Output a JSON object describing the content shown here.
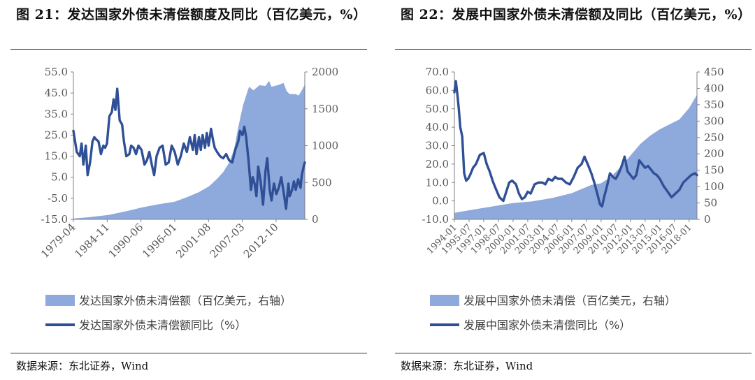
{
  "colors": {
    "area": "#8EA9DB",
    "line": "#2F4F96",
    "axis": "#808080"
  },
  "source_text": "数据来源：东北证券，Wind",
  "chart_data": [
    {
      "type": "area",
      "title": "图  21：发达国家外债未清偿额度及同比（百亿美元，%）",
      "left_axis": {
        "ylim": [
          -15,
          55
        ],
        "ticks": [
          "55.0",
          "45.0",
          "35.0",
          "25.0",
          "15.0",
          "5.0",
          "-5.0",
          "-15.0"
        ]
      },
      "right_axis": {
        "ylim": [
          0,
          2000
        ],
        "ticks": [
          "2000",
          "1500",
          "1000",
          "500",
          "0"
        ]
      },
      "x_ticks": [
        "1979-04",
        "1984-11",
        "1990-06",
        "1996-01",
        "2001-08",
        "2007-03",
        "2012-10"
      ],
      "x_range": [
        1979.25,
        2017.5
      ],
      "grid": false,
      "legend_position": "bottom",
      "series": [
        {
          "name": "发达国家外债未清偿额（百亿美元，右轴）",
          "kind": "area",
          "axis": "right",
          "x": [
            1979.25,
            1982,
            1985,
            1988,
            1990.5,
            1993,
            1996,
            1998,
            2000,
            2001.7,
            2003,
            2004,
            2005,
            2005.8,
            2006.5,
            2007.3,
            2008.0,
            2008.3,
            2009.0,
            2010.0,
            2011.0,
            2011.6,
            2012.0,
            2013.0,
            2014.0,
            2014.5,
            2015.0,
            2016.0,
            2016.5,
            2017.0,
            2017.5
          ],
          "values": [
            10,
            30,
            60,
            110,
            160,
            200,
            240,
            300,
            370,
            450,
            550,
            640,
            770,
            950,
            1250,
            1550,
            1730,
            1800,
            1750,
            1820,
            1810,
            1880,
            1800,
            1820,
            1850,
            1740,
            1700,
            1700,
            1680,
            1750,
            1830
          ]
        },
        {
          "name": "发达国家外债未清偿额同比（%）",
          "kind": "line",
          "axis": "left",
          "x": [
            1979.25,
            1979.8,
            1980.3,
            1980.6,
            1980.9,
            1981.3,
            1981.6,
            1982.0,
            1982.4,
            1982.7,
            1983.0,
            1983.4,
            1983.8,
            1984.2,
            1984.5,
            1984.8,
            1985.2,
            1985.6,
            1985.9,
            1986.2,
            1986.5,
            1986.9,
            1987.3,
            1987.6,
            1988.0,
            1988.5,
            1988.8,
            1989.2,
            1989.6,
            1990.0,
            1990.5,
            1991.0,
            1991.4,
            1991.8,
            1992.2,
            1992.6,
            1993.0,
            1993.5,
            1994.0,
            1994.5,
            1995.0,
            1995.5,
            1996.0,
            1996.5,
            1997.0,
            1997.5,
            1998.0,
            1998.5,
            1999.0,
            1999.3,
            1999.6,
            2000.0,
            2000.3,
            2000.6,
            2001.0,
            2001.3,
            2001.6,
            2002.0,
            2002.3,
            2002.6,
            2003.0,
            2003.5,
            2004.0,
            2004.5,
            2005.0,
            2005.5,
            2006.0,
            2006.5,
            2006.8,
            2007.2,
            2007.5,
            2007.8,
            2008.2,
            2008.6,
            2008.9,
            2009.2,
            2009.5,
            2009.8,
            2010.2,
            2010.6,
            2011.0,
            2011.3,
            2011.7,
            2012.0,
            2012.4,
            2012.8,
            2013.2,
            2013.6,
            2014.0,
            2014.4,
            2014.8,
            2015.0,
            2015.4,
            2015.7,
            2016.0,
            2016.4,
            2016.8,
            2017.0,
            2017.3,
            2017.5
          ],
          "values": [
            27,
            17,
            15,
            21,
            11,
            20,
            6,
            12,
            22,
            24,
            23,
            22,
            16,
            20,
            19,
            21,
            34,
            36,
            42,
            37,
            47,
            32,
            30,
            22,
            15,
            16,
            20,
            19,
            16,
            20,
            18,
            11,
            13,
            17,
            11,
            6,
            15,
            19,
            20,
            11,
            12,
            20,
            17,
            11,
            15,
            21,
            17,
            24,
            18,
            25,
            16,
            24,
            18,
            25,
            19,
            26,
            20,
            28,
            23,
            19,
            17,
            15,
            14,
            16,
            13,
            12,
            18,
            22,
            27,
            25,
            29,
            24,
            13,
            -1,
            5,
            2,
            -4,
            10,
            3,
            -8,
            8,
            14,
            -1,
            -6,
            2,
            -3,
            0,
            5,
            -2,
            -10,
            2,
            -4,
            -1,
            3,
            -1,
            4,
            0,
            6,
            10,
            12
          ]
        }
      ]
    },
    {
      "type": "area",
      "title": "图  22：发展中国家外债未清偿额及同比（百亿美元，%）",
      "left_axis": {
        "ylim": [
          -10,
          70
        ],
        "ticks": [
          "70.0",
          "60.0",
          "50.0",
          "40.0",
          "30.0",
          "20.0",
          "10.0",
          "0.0",
          "-10.0"
        ]
      },
      "right_axis": {
        "ylim": [
          0,
          450
        ],
        "ticks": [
          "450",
          "400",
          "350",
          "300",
          "250",
          "200",
          "150",
          "100",
          "50",
          "0"
        ]
      },
      "x_ticks": [
        "1994-01",
        "1995-07",
        "1997-01",
        "1998-07",
        "2000-01",
        "2001-07",
        "2003-01",
        "2004-07",
        "2006-01",
        "2007-07",
        "2009-01",
        "2010-07",
        "2012-01",
        "2013-07",
        "2015-01",
        "2016-07",
        "2018-01"
      ],
      "x_range": [
        1994.0,
        2018.8
      ],
      "grid": false,
      "legend_position": "bottom",
      "series": [
        {
          "name": "发展中国家外债未清偿（百亿美元，右轴）",
          "kind": "area",
          "axis": "right",
          "x": [
            1994.0,
            1996,
            1998,
            2000,
            2002,
            2004,
            2006,
            2008,
            2009,
            2010,
            2011,
            2012,
            2013,
            2014,
            2015,
            2016,
            2017,
            2018,
            2018.8
          ],
          "values": [
            20,
            30,
            40,
            50,
            55,
            65,
            80,
            105,
            110,
            130,
            160,
            195,
            230,
            255,
            275,
            290,
            305,
            340,
            380
          ]
        },
        {
          "name": "发展中国家外债未清偿同比（%）",
          "kind": "line",
          "axis": "left",
          "x": [
            1994.0,
            1994.15,
            1994.3,
            1994.45,
            1994.6,
            1994.8,
            1995.0,
            1995.2,
            1995.4,
            1995.6,
            1995.9,
            1996.2,
            1996.6,
            1997.0,
            1997.3,
            1997.6,
            1997.9,
            1998.2,
            1998.6,
            1999.0,
            1999.3,
            1999.6,
            1999.9,
            2000.3,
            2000.6,
            2000.9,
            2001.2,
            2001.5,
            2001.8,
            2002.2,
            2002.6,
            2003.0,
            2003.3,
            2003.6,
            2004.0,
            2004.3,
            2004.6,
            2005.0,
            2005.4,
            2005.8,
            2006.2,
            2006.6,
            2007.0,
            2007.3,
            2007.7,
            2008.0,
            2008.3,
            2008.6,
            2008.9,
            2009.1,
            2009.3,
            2009.6,
            2009.9,
            2010.2,
            2010.5,
            2010.8,
            2011.1,
            2011.4,
            2011.7,
            2012.0,
            2012.3,
            2012.6,
            2012.9,
            2013.2,
            2013.5,
            2013.8,
            2014.1,
            2014.4,
            2014.7,
            2015.0,
            2015.4,
            2015.8,
            2016.2,
            2016.6,
            2017.0,
            2017.4,
            2017.8,
            2018.2,
            2018.6,
            2018.8
          ],
          "values": [
            59,
            65,
            58,
            50,
            40,
            35,
            15,
            11,
            12,
            14,
            18,
            20,
            25,
            26,
            20,
            16,
            11,
            7,
            2,
            0,
            5,
            10,
            11,
            9,
            4,
            1,
            2,
            5,
            4,
            9,
            10,
            10,
            9,
            12,
            11,
            13,
            12,
            12,
            10,
            9,
            13,
            18,
            20,
            24,
            19,
            15,
            10,
            4,
            -2,
            -3,
            2,
            8,
            15,
            13,
            12,
            15,
            19,
            24,
            16,
            14,
            12,
            14,
            22,
            20,
            18,
            19,
            17,
            15,
            14,
            12,
            8,
            5,
            2,
            4,
            6,
            10,
            12,
            14,
            15,
            14
          ]
        }
      ]
    }
  ]
}
